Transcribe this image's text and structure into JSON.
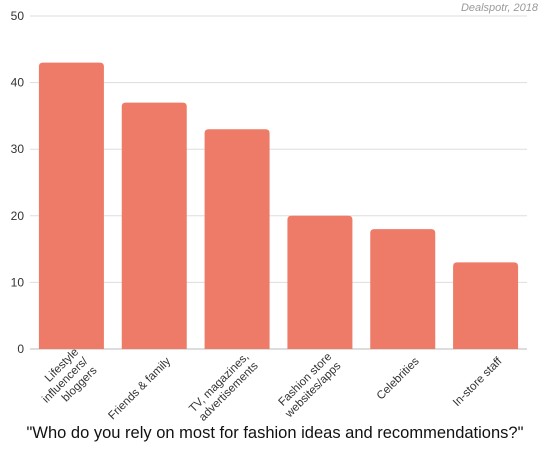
{
  "source_note": "Dealspotr, 2018",
  "caption": "\"Who do you rely on most for fashion ideas and recommendations?\"",
  "chart_data": {
    "type": "bar",
    "categories": [
      [
        "Lifestyle",
        "influencers/",
        "bloggers"
      ],
      [
        "Friends & family"
      ],
      [
        "TV, magazines,",
        "advertisements"
      ],
      [
        "Fashion store",
        "websites/apps"
      ],
      [
        "Celebrities"
      ],
      [
        "In-store staff"
      ]
    ],
    "values": [
      43,
      37,
      33,
      20,
      18,
      13
    ],
    "yticks": [
      0,
      10,
      20,
      30,
      40,
      50
    ],
    "ylim": [
      0,
      50
    ],
    "grid": true,
    "bar_color": "#ee7b67",
    "title": "",
    "xlabel": "",
    "ylabel": ""
  }
}
